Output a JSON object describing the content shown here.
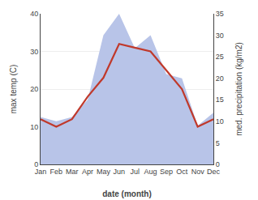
{
  "chart_data": {
    "type": "line",
    "categories": [
      "Jan",
      "Feb",
      "Mar",
      "Apr",
      "May",
      "Jun",
      "Jul",
      "Aug",
      "Sep",
      "Oct",
      "Nov",
      "Dec"
    ],
    "series": [
      {
        "type": "area",
        "color": "#b8c4e8",
        "axis": "y2",
        "values": [
          11,
          10,
          11,
          15,
          30,
          35,
          27,
          30,
          21,
          20,
          9,
          12
        ]
      },
      {
        "type": "line",
        "color": "#c0392b",
        "values": [
          12,
          10,
          12,
          18,
          23,
          32,
          31,
          30,
          25,
          20,
          10,
          12
        ]
      }
    ],
    "xlabel": "date (month)",
    "ylabel": "max temp (C)",
    "y2label": "med. precipitation (kg/m2)",
    "ylim": [
      0,
      40
    ],
    "yticks": [
      0,
      10,
      20,
      30,
      40
    ],
    "y2lim": [
      0,
      35
    ],
    "y2ticks": [
      0,
      5,
      10,
      15,
      20,
      25,
      30,
      35
    ],
    "grid": true
  }
}
